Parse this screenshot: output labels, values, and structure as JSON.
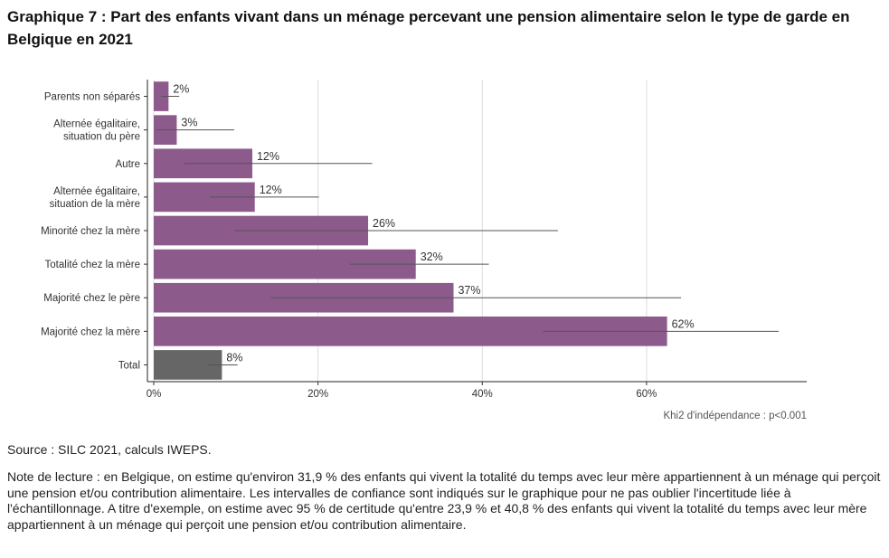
{
  "title": "Graphique 7 : Part des enfants vivant dans un ménage percevant une pension alimentaire selon le type de garde en Belgique en 2021",
  "source": "Source : SILC 2021, calculs IWEPS.",
  "note": "Note de lecture : en Belgique, on estime qu'environ 31,9 % des enfants qui vivent la totalité du temps avec leur mère appartiennent à un ménage qui perçoit une pension et/ou contribution alimentaire. Les intervalles de confiance sont indiqués sur le graphique pour ne pas oublier l'incertitude liée à l'échantillonnage. A titre d'exemple, on estime avec 95 % de certitude qu'entre 23,9 % et 40,8 % des enfants qui vivent la totalité du temps avec leur mère appartiennent à un ménage qui perçoit une pension et/ou contribution alimentaire.",
  "colors": {
    "bar": "#8c5b8c",
    "total": "#666666",
    "grid": "#dcdcdc",
    "ci": "#555555"
  },
  "chart_data": {
    "type": "bar",
    "orientation": "horizontal",
    "categories": [
      "Parents non séparés",
      "Alternée égalitaire,\nsituation du père",
      "Autre",
      "Alternée égalitaire,\nsituation de la mère",
      "Minorité chez la mère",
      "Totalité chez la mère",
      "Majorité chez le père",
      "Majorité chez la mère",
      "Total"
    ],
    "values": [
      1.8,
      2.8,
      12.0,
      12.3,
      26.1,
      31.9,
      36.5,
      62.5,
      8.3
    ],
    "data_labels": [
      "2%",
      "3%",
      "12%",
      "12%",
      "26%",
      "32%",
      "37%",
      "62%",
      "8%"
    ],
    "ci_low": [
      0.9,
      0.3,
      3.7,
      6.8,
      9.8,
      23.9,
      14.2,
      47.4,
      6.6
    ],
    "ci_high": [
      3.1,
      9.8,
      26.6,
      20.1,
      49.2,
      40.8,
      64.2,
      76.1,
      10.2
    ],
    "highlight": [
      "",
      "",
      "",
      "",
      "",
      "",
      "",
      "",
      "total"
    ],
    "xlim": [
      0,
      79.5
    ],
    "xticks": [
      0,
      20,
      40,
      60
    ],
    "xtick_labels": [
      "0%",
      "20%",
      "40%",
      "60%"
    ],
    "grid": true,
    "xlabel": "",
    "ylabel": "",
    "annotation": "Khi2 d'indépendance : p<0.001"
  }
}
